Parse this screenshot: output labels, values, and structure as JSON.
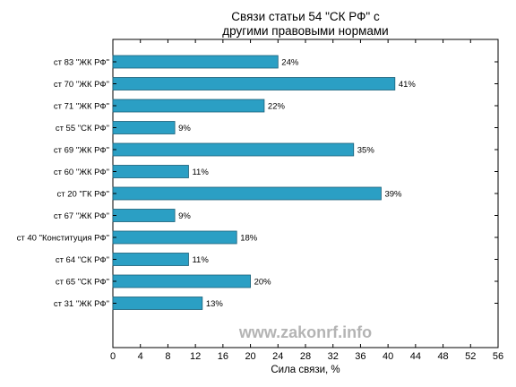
{
  "chart_data": {
    "type": "bar",
    "orientation": "horizontal",
    "title": [
      "Связи статьи 54 \"СК РФ\" с",
      "другими правовыми нормами"
    ],
    "xlabel": "Сила связи, %",
    "ylabel": "",
    "xlim": [
      0,
      56
    ],
    "xticks": [
      0,
      4,
      8,
      12,
      16,
      20,
      24,
      28,
      32,
      36,
      40,
      44,
      48,
      52,
      56
    ],
    "categories": [
      "ст 83 \"ЖК РФ\"",
      "ст 70 \"ЖК РФ\"",
      "ст 71 \"ЖК РФ\"",
      "ст 55 \"СК РФ\"",
      "ст 69 \"ЖК РФ\"",
      "ст 60 \"ЖК РФ\"",
      "ст 20 \"ГК РФ\"",
      "ст 67 \"ЖК РФ\"",
      "ст 40 \"Конституция РФ\"",
      "ст 64 \"СК РФ\"",
      "ст 65 \"СК РФ\"",
      "ст 31 \"ЖК РФ\""
    ],
    "values": [
      24,
      41,
      22,
      9,
      35,
      11,
      39,
      9,
      18,
      11,
      20,
      13
    ],
    "value_labels": [
      "24%",
      "41%",
      "22%",
      "9%",
      "35%",
      "11%",
      "39%",
      "9%",
      "18%",
      "11%",
      "20%",
      "13%"
    ],
    "bar_color": "#2b9fc4",
    "bar_edge_color": "#1b5f78",
    "grid": false,
    "legend": "none"
  },
  "watermark": "www.zakonrf.info"
}
